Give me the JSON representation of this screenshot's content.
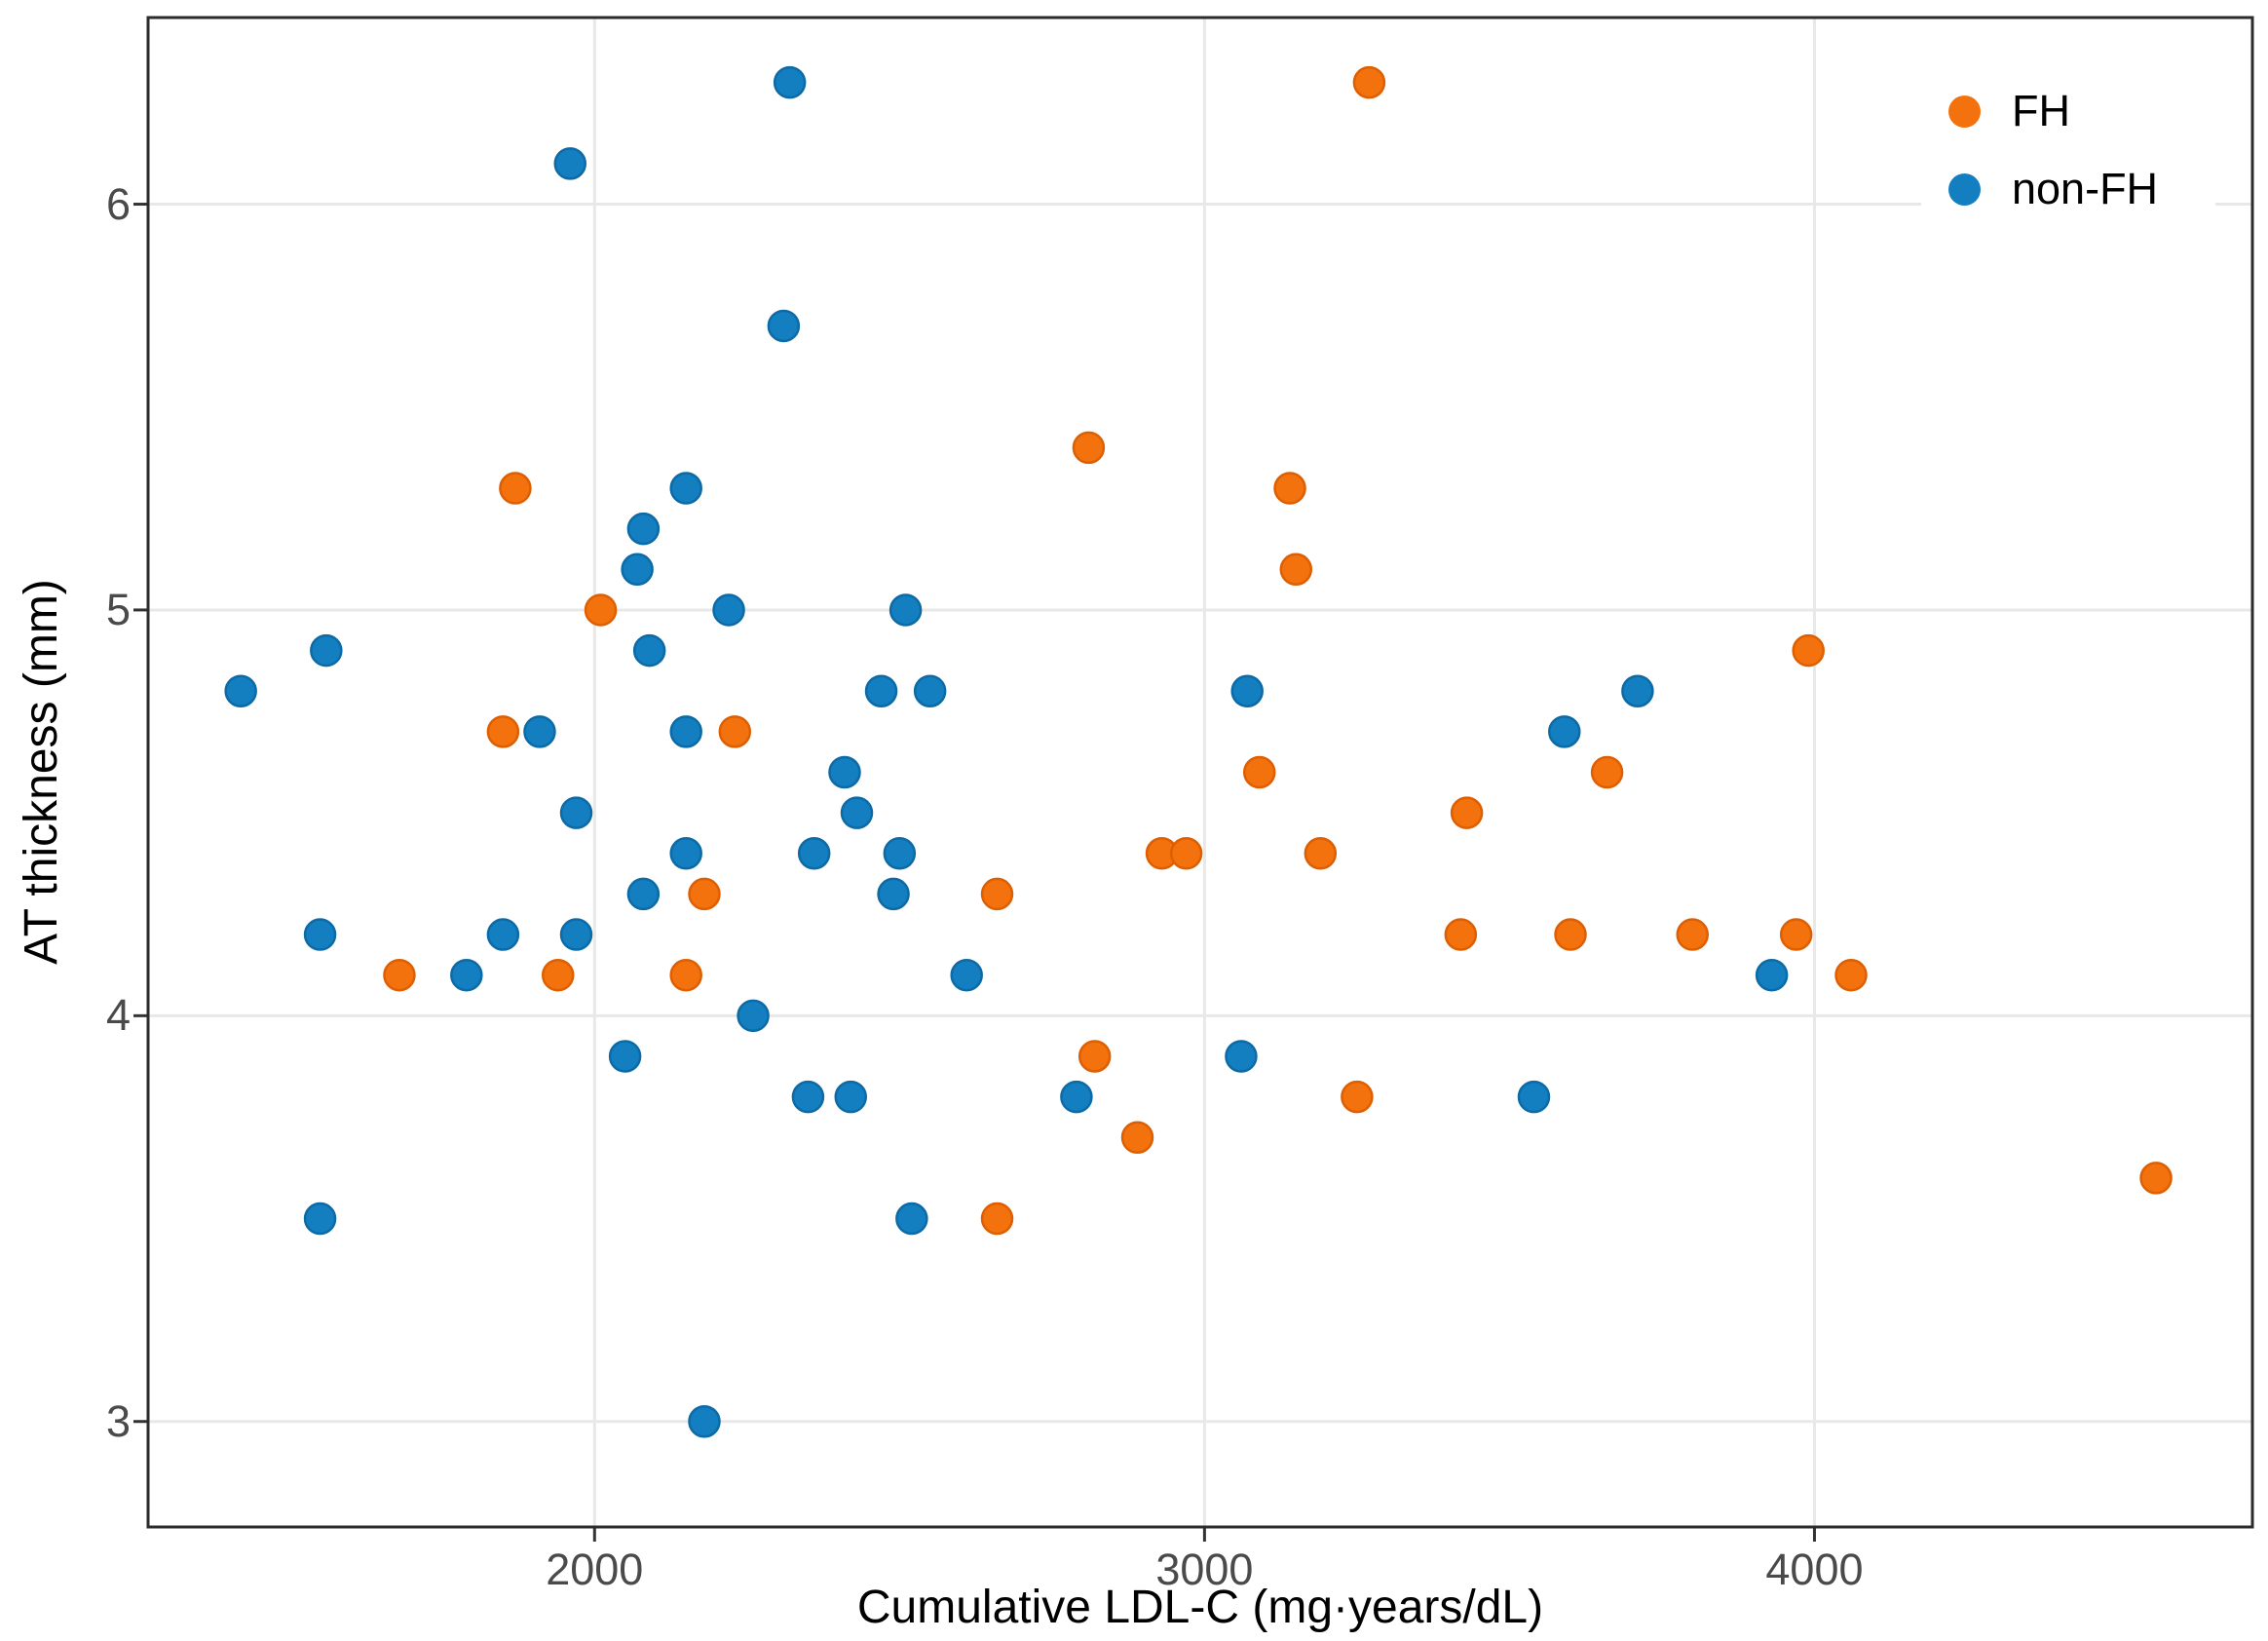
{
  "chart_data": {
    "type": "scatter",
    "title": "",
    "xlabel": "Cumulative LDL-C (mg·years/dL)",
    "ylabel": "AT thickness (mm)",
    "x_ticks": [
      "2000",
      "3000",
      "4000"
    ],
    "y_ticks": [
      "3",
      "4",
      "5",
      "6"
    ],
    "x_tick_values": [
      2000,
      3000,
      4000
    ],
    "y_tick_values": [
      3,
      4,
      5,
      6
    ],
    "xlim": [
      1268,
      4718
    ],
    "ylim": [
      2.74,
      6.46
    ],
    "grid": true,
    "legend_position": "top-right-inside",
    "colors": {
      "panel_border": "#2b2b2b",
      "gridline": "#e8e8e8",
      "tick_mark": "#333333",
      "tick_text": "#4a4a4a",
      "background": "#ffffff"
    },
    "series": [
      {
        "name": "FH",
        "color": "#f4720d",
        "stroke": "#dd5f02",
        "points": [
          [
            3270,
            6.3
          ],
          [
            2810,
            5.4
          ],
          [
            1870,
            5.3
          ],
          [
            3140,
            5.3
          ],
          [
            3150,
            5.1
          ],
          [
            2010,
            5.0
          ],
          [
            3990,
            4.9
          ],
          [
            1850,
            4.7
          ],
          [
            2230,
            4.7
          ],
          [
            3660,
            4.6
          ],
          [
            3090,
            4.6
          ],
          [
            3430,
            4.5
          ],
          [
            2930,
            4.4
          ],
          [
            2970,
            4.4
          ],
          [
            3190,
            4.4
          ],
          [
            2180,
            4.3
          ],
          [
            2660,
            4.3
          ],
          [
            3420,
            4.2
          ],
          [
            3600,
            4.2
          ],
          [
            3800,
            4.2
          ],
          [
            3970,
            4.2
          ],
          [
            1680,
            4.1
          ],
          [
            1940,
            4.1
          ],
          [
            2150,
            4.1
          ],
          [
            4060,
            4.1
          ],
          [
            2820,
            3.9
          ],
          [
            3250,
            3.8
          ],
          [
            2890,
            3.7
          ],
          [
            4560,
            3.6
          ],
          [
            2660,
            3.5
          ]
        ]
      },
      {
        "name": "non-FH",
        "color": "#147fc0",
        "stroke": "#0c6aa6",
        "points": [
          [
            2320,
            6.3
          ],
          [
            1960,
            6.1
          ],
          [
            2310,
            5.7
          ],
          [
            2150,
            5.3
          ],
          [
            2080,
            5.2
          ],
          [
            2070,
            5.1
          ],
          [
            2220,
            5.0
          ],
          [
            2510,
            5.0
          ],
          [
            1560,
            4.9
          ],
          [
            2090,
            4.9
          ],
          [
            1420,
            4.8
          ],
          [
            2470,
            4.8
          ],
          [
            2550,
            4.8
          ],
          [
            3070,
            4.8
          ],
          [
            3710,
            4.8
          ],
          [
            1910,
            4.7
          ],
          [
            2150,
            4.7
          ],
          [
            3590,
            4.7
          ],
          [
            2410,
            4.6
          ],
          [
            1970,
            4.5
          ],
          [
            2430,
            4.5
          ],
          [
            2150,
            4.4
          ],
          [
            2360,
            4.4
          ],
          [
            2500,
            4.4
          ],
          [
            2080,
            4.3
          ],
          [
            2490,
            4.3
          ],
          [
            1550,
            4.2
          ],
          [
            1850,
            4.2
          ],
          [
            1970,
            4.2
          ],
          [
            1790,
            4.1
          ],
          [
            2610,
            4.1
          ],
          [
            3930,
            4.1
          ],
          [
            2260,
            4.0
          ],
          [
            2050,
            3.9
          ],
          [
            3060,
            3.9
          ],
          [
            2350,
            3.8
          ],
          [
            2420,
            3.8
          ],
          [
            2790,
            3.8
          ],
          [
            3540,
            3.8
          ],
          [
            1550,
            3.5
          ],
          [
            2520,
            3.5
          ],
          [
            2180,
            3.0
          ]
        ]
      }
    ]
  }
}
